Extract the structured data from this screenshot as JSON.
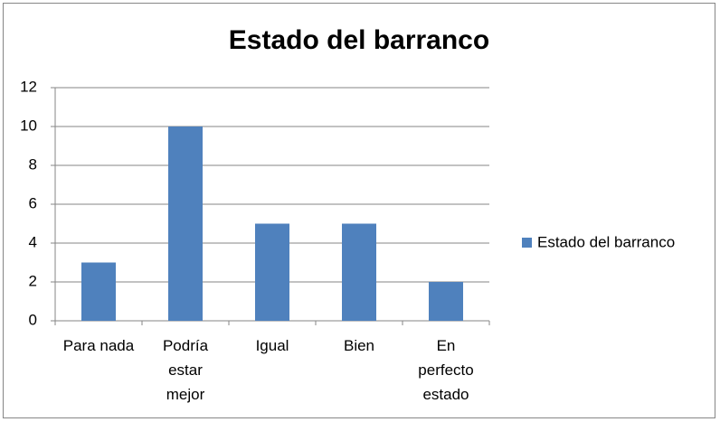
{
  "chart_data": {
    "type": "bar",
    "title": "Estado del barranco",
    "categories": [
      "Para nada",
      "Podría estar mejor",
      "Igual",
      "Bien",
      "En perfecto estado"
    ],
    "series": [
      {
        "name": "Estado del barranco",
        "color": "#4f81bd",
        "values": [
          3,
          10,
          5,
          5,
          2
        ]
      }
    ],
    "ylim": [
      0,
      12
    ],
    "yticks": [
      0,
      2,
      4,
      6,
      8,
      10,
      12
    ],
    "grid": true,
    "legend": "right"
  }
}
